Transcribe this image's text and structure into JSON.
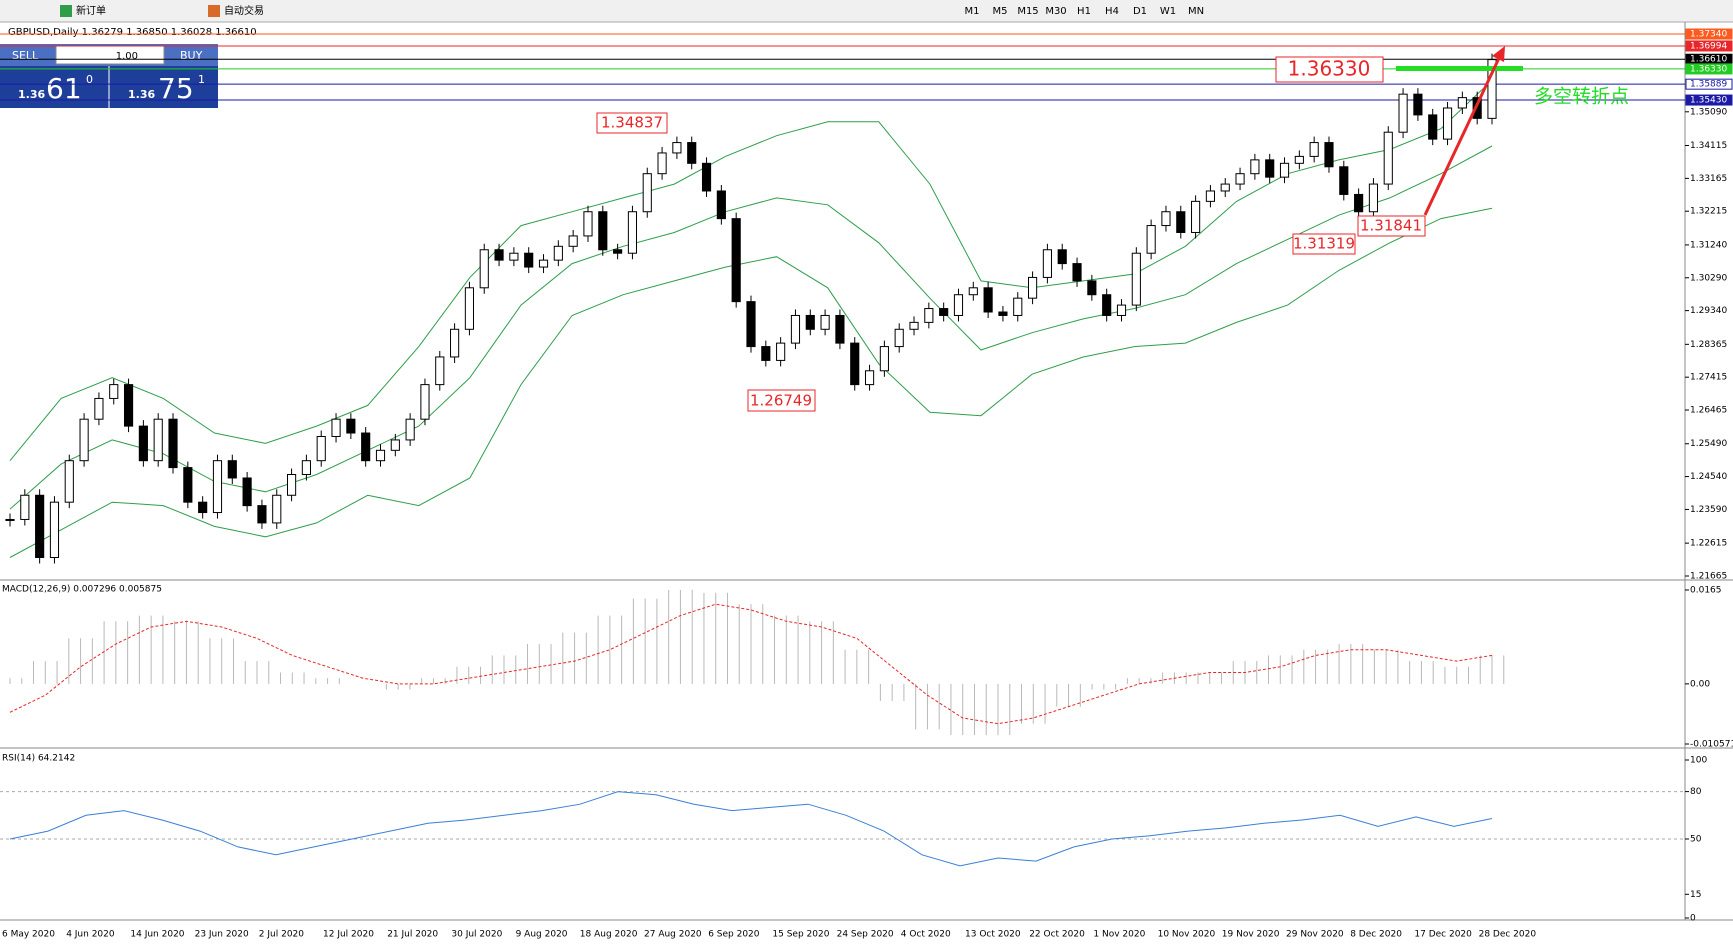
{
  "toolbar": {
    "buttons": [
      "新订单",
      "自动交易"
    ],
    "timeframes": [
      "M1",
      "M5",
      "M15",
      "M30",
      "H1",
      "H4",
      "D1",
      "W1",
      "MN"
    ]
  },
  "chart_header": "GBPUSD,Daily  1.36279 1.36850 1.36028 1.36610",
  "trade_panel": {
    "sell": "SELL",
    "buy": "BUY",
    "lot": "1.00",
    "bid_prefix": "1.36",
    "bid_big": "61",
    "bid_small": "0",
    "ask_prefix": "1.36",
    "ask_big": "75",
    "ask_small": "1"
  },
  "annotations": [
    "1.36330",
    "1.34837",
    "1.26749",
    "1.31319",
    "1.31841",
    "多空转折点"
  ],
  "chart_data": [
    {
      "type": "candlestick",
      "ylim": [
        1.21665,
        1.3734
      ],
      "yticks": [
        {
          "value": 1.21665,
          "label": "1.21665"
        },
        {
          "value": 1.22615,
          "label": "1.22615"
        },
        {
          "value": 1.2359,
          "label": "1.23590"
        },
        {
          "value": 1.2454,
          "label": "1.24540"
        },
        {
          "value": 1.2549,
          "label": "1.25490"
        },
        {
          "value": 1.26465,
          "label": "1.26465"
        },
        {
          "value": 1.27415,
          "label": "1.27415"
        },
        {
          "value": 1.28365,
          "label": "1.28365"
        },
        {
          "value": 1.2934,
          "label": "1.29340"
        },
        {
          "value": 1.3029,
          "label": "1.30290"
        },
        {
          "value": 1.3124,
          "label": "1.31240"
        },
        {
          "value": 1.32215,
          "label": "1.32215"
        },
        {
          "value": 1.33165,
          "label": "1.33165"
        },
        {
          "value": 1.34115,
          "label": "1.34115"
        },
        {
          "value": 1.3509,
          "label": "1.35090"
        }
      ],
      "levels": [
        {
          "value": 1.3734,
          "label": "1.37340",
          "color": "#ff5a1e"
        },
        {
          "value": 1.36994,
          "label": "1.36994",
          "color": "#e8262a"
        },
        {
          "value": 1.3661,
          "label": "1.36610",
          "color": "#000000"
        },
        {
          "value": 1.3633,
          "label": "1.36330",
          "color": "#22cc22"
        },
        {
          "value": 1.35889,
          "label": "1.35889",
          "color": "#1a1aa6"
        },
        {
          "value": 1.3543,
          "label": "1.35430",
          "color": "#1a1aa6"
        }
      ],
      "x_labels": [
        "6 May 2020",
        "4 Jun 2020",
        "14 Jun 2020",
        "23 Jun 2020",
        "2 Jul 2020",
        "12 Jul 2020",
        "21 Jul 2020",
        "30 Jul 2020",
        "9 Aug 2020",
        "18 Aug 2020",
        "27 Aug 2020",
        "6 Sep 2020",
        "15 Sep 2020",
        "24 Sep 2020",
        "4 Oct 2020",
        "13 Oct 2020",
        "22 Oct 2020",
        "1 Nov 2020",
        "10 Nov 2020",
        "19 Nov 2020",
        "29 Nov 2020",
        "8 Dec 2020",
        "17 Dec 2020",
        "28 Dec 2020"
      ],
      "values": [
        1.233,
        1.24,
        1.222,
        1.238,
        1.25,
        1.262,
        1.268,
        1.272,
        1.26,
        1.25,
        1.262,
        1.248,
        1.238,
        1.235,
        1.25,
        1.245,
        1.237,
        1.232,
        1.24,
        1.246,
        1.25,
        1.257,
        1.262,
        1.258,
        1.25,
        1.253,
        1.256,
        1.262,
        1.272,
        1.28,
        1.288,
        1.3,
        1.311,
        1.308,
        1.31,
        1.306,
        1.308,
        1.312,
        1.315,
        1.322,
        1.311,
        1.31,
        1.322,
        1.333,
        1.339,
        1.342,
        1.336,
        1.328,
        1.32,
        1.296,
        1.283,
        1.279,
        1.284,
        1.292,
        1.288,
        1.292,
        1.284,
        1.272,
        1.276,
        1.283,
        1.288,
        1.29,
        1.294,
        1.292,
        1.298,
        1.3,
        1.293,
        1.292,
        1.297,
        1.303,
        1.311,
        1.307,
        1.302,
        1.298,
        1.292,
        1.295,
        1.31,
        1.318,
        1.322,
        1.316,
        1.325,
        1.328,
        1.33,
        1.333,
        1.337,
        1.332,
        1.336,
        1.338,
        1.342,
        1.335,
        1.327,
        1.322,
        1.33,
        1.345,
        1.356,
        1.35,
        1.343,
        1.352,
        1.355,
        1.349,
        1.366
      ],
      "series": [
        {
          "name": "upper",
          "color": "#2e9e4a",
          "values": [
            1.25,
            1.268,
            1.274,
            1.268,
            1.258,
            1.255,
            1.26,
            1.266,
            1.283,
            1.303,
            1.318,
            1.322,
            1.326,
            1.33,
            1.338,
            1.344,
            1.348,
            1.348,
            1.33,
            1.302,
            1.3,
            1.302,
            1.304,
            1.312,
            1.325,
            1.333,
            1.337,
            1.34,
            1.346,
            1.36
          ]
        },
        {
          "name": "middle",
          "color": "#2e9e4a",
          "values": [
            1.236,
            1.249,
            1.256,
            1.252,
            1.244,
            1.241,
            1.246,
            1.253,
            1.26,
            1.274,
            1.295,
            1.307,
            1.312,
            1.316,
            1.322,
            1.326,
            1.324,
            1.313,
            1.297,
            1.282,
            1.287,
            1.291,
            1.294,
            1.298,
            1.307,
            1.314,
            1.321,
            1.326,
            1.333,
            1.341
          ]
        },
        {
          "name": "lower",
          "color": "#2e9e4a",
          "values": [
            1.222,
            1.23,
            1.238,
            1.237,
            1.231,
            1.228,
            1.232,
            1.24,
            1.237,
            1.245,
            1.272,
            1.292,
            1.298,
            1.302,
            1.306,
            1.309,
            1.3,
            1.278,
            1.264,
            1.263,
            1.275,
            1.28,
            1.283,
            1.284,
            1.29,
            1.295,
            1.305,
            1.313,
            1.32,
            1.323
          ]
        }
      ]
    },
    {
      "type": "macd",
      "title": "MACD(12,26,9) 0.007296 0.005875",
      "ylim": [
        -0.010571,
        0.0165
      ],
      "yticks": [
        {
          "value": 0.0165,
          "label": "0.0165"
        },
        {
          "value": 0,
          "label": "0.00"
        },
        {
          "value": -0.010571,
          "label": "-0.010571"
        }
      ],
      "series": [
        {
          "name": "histogram",
          "color": "#b8b8b8",
          "values": [
            0.001,
            0.004,
            0.008,
            0.011,
            0.012,
            0.011,
            0.008,
            0.004,
            0.002,
            0.001,
            0,
            -0.001,
            0.001,
            0.003,
            0.005,
            0.007,
            0.009,
            0.012,
            0.015,
            0.0165,
            0.016,
            0.014,
            0.012,
            0.011,
            0.006,
            -0.003,
            -0.008,
            -0.009,
            -0.009,
            -0.007,
            -0.004,
            -0.001,
            0.001,
            0.002,
            0.002,
            0.004,
            0.005,
            0.006,
            0.007,
            0.006,
            0.004,
            0.003,
            0.005
          ]
        },
        {
          "name": "signal",
          "color": "#e8262a",
          "values": [
            -0.005,
            -0.002,
            0.003,
            0.007,
            0.01,
            0.011,
            0.01,
            0.008,
            0.005,
            0.003,
            0.001,
            0,
            0,
            0.001,
            0.002,
            0.003,
            0.004,
            0.006,
            0.009,
            0.012,
            0.014,
            0.013,
            0.011,
            0.01,
            0.008,
            0.003,
            -0.002,
            -0.006,
            -0.007,
            -0.006,
            -0.004,
            -0.002,
            0,
            0.001,
            0.002,
            0.002,
            0.003,
            0.005,
            0.006,
            0.006,
            0.005,
            0.004,
            0.005
          ]
        }
      ]
    },
    {
      "type": "line",
      "title": "RSI(14) 64.2142",
      "ylim": [
        0,
        100
      ],
      "yticks": [
        100,
        80,
        50,
        15,
        0
      ],
      "grid_levels": [
        80,
        50
      ],
      "series": [
        {
          "name": "RSI",
          "color": "#3a7fd6",
          "values": [
            50,
            55,
            65,
            68,
            62,
            55,
            45,
            40,
            45,
            50,
            55,
            60,
            62,
            65,
            68,
            72,
            80,
            78,
            72,
            68,
            70,
            72,
            65,
            55,
            40,
            33,
            38,
            36,
            45,
            50,
            52,
            55,
            57,
            60,
            62,
            65,
            58,
            64,
            58,
            63
          ]
        }
      ]
    }
  ]
}
